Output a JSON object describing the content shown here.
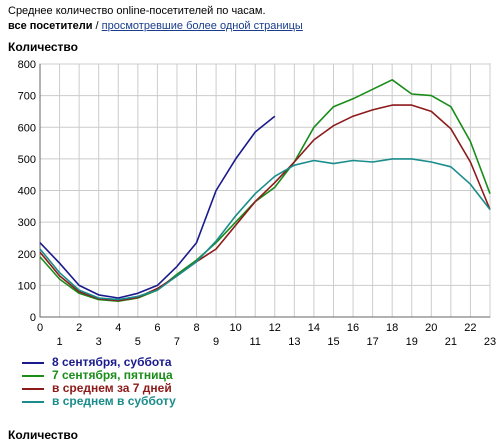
{
  "header": {
    "subtitle": "Среднее количество online-посетителей по часам.",
    "filter_all": "все посетители",
    "filter_sep": " / ",
    "filter_link": "просмотревшие более одной страницы"
  },
  "footer": {
    "title": "Количество"
  },
  "colors": {
    "saturday_sep8": "#1a1a8c",
    "friday_sep7": "#1a8c1a",
    "avg_7days": "#8c1a1a",
    "avg_saturday": "#1a8c8c",
    "grid": "#cccccc"
  },
  "chart_data": {
    "type": "line",
    "ylabel": "Количество",
    "xlabel": "",
    "ylim": [
      0,
      800
    ],
    "yticks": [
      0,
      100,
      200,
      300,
      400,
      500,
      600,
      700,
      800
    ],
    "xlim": [
      0,
      23
    ],
    "xticks_top_row": [
      0,
      3,
      6,
      9,
      12,
      15,
      18,
      21
    ],
    "xticks_bottom_row": [
      1,
      4,
      7,
      10,
      13,
      16,
      19,
      22
    ],
    "xticks_right_row": [
      2,
      5,
      8,
      11,
      14,
      17,
      20,
      23
    ],
    "grid": true,
    "legend_position": "bottom-left",
    "series": [
      {
        "name": "8 сентября, суббота",
        "color_key": "saturday_sep8",
        "x": [
          0,
          1,
          2,
          3,
          4,
          5,
          6,
          7,
          8,
          9,
          10,
          11,
          12
        ],
        "values": [
          235,
          170,
          100,
          70,
          60,
          75,
          100,
          160,
          235,
          400,
          500,
          585,
          635
        ]
      },
      {
        "name": "7 сентября, пятница",
        "color_key": "friday_sep7",
        "x": [
          0,
          1,
          2,
          3,
          4,
          5,
          6,
          7,
          8,
          9,
          10,
          11,
          12,
          13,
          14,
          15,
          16,
          17,
          18,
          19,
          20,
          21,
          22,
          23
        ],
        "values": [
          190,
          120,
          75,
          55,
          50,
          60,
          85,
          135,
          180,
          235,
          300,
          365,
          410,
          490,
          600,
          665,
          690,
          720,
          750,
          705,
          700,
          665,
          555,
          390
        ]
      },
      {
        "name": "в среднем за 7 дней",
        "color_key": "avg_7days",
        "x": [
          0,
          1,
          2,
          3,
          4,
          5,
          6,
          7,
          8,
          9,
          10,
          11,
          12,
          13,
          14,
          15,
          16,
          17,
          18,
          19,
          20,
          21,
          22,
          23
        ],
        "values": [
          205,
          130,
          80,
          58,
          52,
          62,
          90,
          130,
          175,
          215,
          290,
          365,
          425,
          490,
          560,
          605,
          635,
          655,
          670,
          670,
          650,
          595,
          490,
          340
        ]
      },
      {
        "name": "в среднем в субботу",
        "color_key": "avg_saturday",
        "x": [
          0,
          1,
          2,
          3,
          4,
          5,
          6,
          7,
          8,
          9,
          10,
          11,
          12,
          13,
          14,
          15,
          16,
          17,
          18,
          19,
          20,
          21,
          22,
          23
        ],
        "values": [
          215,
          140,
          85,
          60,
          55,
          65,
          85,
          130,
          175,
          240,
          320,
          390,
          445,
          480,
          495,
          485,
          495,
          490,
          500,
          500,
          490,
          475,
          420,
          340
        ]
      }
    ]
  }
}
